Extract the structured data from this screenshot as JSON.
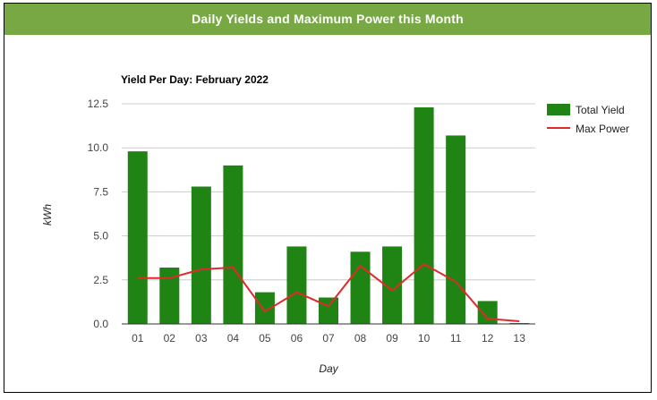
{
  "banner": {
    "title": "Daily Yields and Maximum Power this Month"
  },
  "chart_data": {
    "type": "bar",
    "title": "Yield Per Day: February 2022",
    "xlabel": "Day",
    "ylabel": "kWh",
    "ylim": [
      0,
      12.5
    ],
    "yticks": [
      "0.0",
      "2.5",
      "5.0",
      "7.5",
      "10.0",
      "12.5"
    ],
    "categories": [
      "01",
      "02",
      "03",
      "04",
      "05",
      "06",
      "07",
      "08",
      "09",
      "10",
      "11",
      "12",
      "13"
    ],
    "legend_position": "right",
    "grid": true,
    "series": [
      {
        "name": "Total Yield",
        "kind": "bar",
        "color": "#208415",
        "values": [
          9.8,
          3.2,
          7.8,
          9.0,
          1.8,
          4.4,
          1.5,
          4.1,
          4.4,
          12.3,
          10.7,
          1.3,
          0.05
        ]
      },
      {
        "name": "Max Power",
        "kind": "line",
        "color": "#e02a2a",
        "values": [
          2.6,
          2.6,
          3.1,
          3.2,
          0.7,
          1.8,
          1.0,
          3.3,
          1.9,
          3.4,
          2.4,
          0.3,
          0.15
        ]
      }
    ]
  }
}
